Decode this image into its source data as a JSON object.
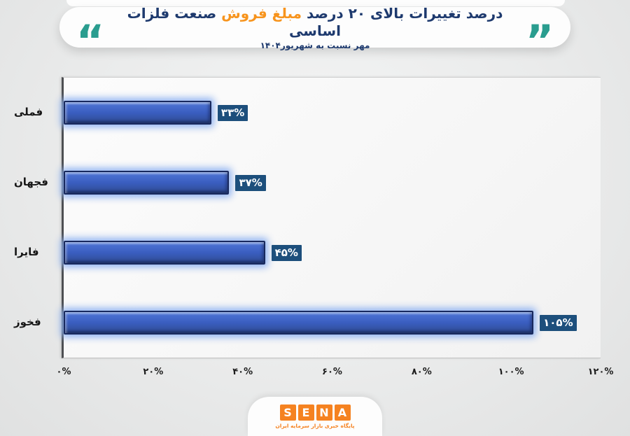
{
  "header": {
    "title_segment_right": "درصد تغییرات بالای ۲۰ درصد",
    "title_segment_highlight": "مبلغ فروش",
    "title_segment_left": "صنعت فلزات اساسی",
    "subtitle": "مهر نسبت به شهریور۱۴۰۴",
    "open_quote_glyph": "“",
    "close_quote_glyph": "”"
  },
  "chart_data": {
    "type": "bar",
    "orientation": "horizontal",
    "title": "درصد تغییرات بالای ۲۰ درصد مبلغ فروش صنعت فلزات اساسی",
    "subtitle": "مهر نسبت به شهریور۱۴۰۴",
    "categories": [
      "فملی",
      "فجهان",
      "فایرا",
      "فخوز"
    ],
    "values": [
      33,
      37,
      45,
      105
    ],
    "value_labels": [
      "۳۳%",
      "۳۷%",
      "۴۵%",
      "۱۰۵%"
    ],
    "x_ticks": [
      "۰%",
      "۲۰%",
      "۴۰%",
      "۶۰%",
      "۸۰%",
      "۱۰۰%",
      "۱۲۰%"
    ],
    "xlim": [
      0,
      120
    ],
    "xlabel": "",
    "ylabel": "",
    "grid": false,
    "legend": false,
    "bar_color": "#3a5ec0",
    "badge_color": "#1d4f7c"
  },
  "footer": {
    "logo_letters": [
      "S",
      "E",
      "N",
      "A"
    ],
    "logo_tagline": "پایگاه خبری بازار سرمایه ایران"
  },
  "colors": {
    "navy": "#1e3a6e",
    "orange": "#f7941d",
    "teal": "#2a9d8f",
    "orange_logo": "#f58220"
  }
}
